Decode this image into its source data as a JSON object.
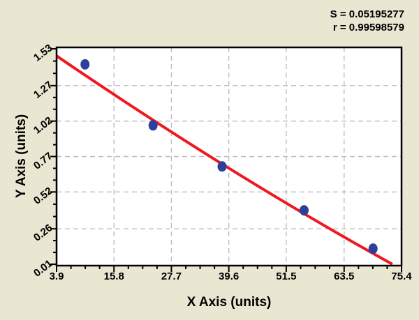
{
  "chart_data": {
    "type": "scatter",
    "title": "",
    "xlabel": "X Axis (units)",
    "ylabel": "Y Axis (units)",
    "xlim": [
      3.9,
      75.4
    ],
    "ylim": [
      0.01,
      1.53
    ],
    "x_ticks": [
      3.9,
      15.8,
      27.7,
      39.6,
      51.5,
      63.5,
      75.4
    ],
    "y_ticks": [
      1.53,
      1.27,
      1.02,
      0.77,
      0.52,
      0.26,
      0.01
    ],
    "grid": true,
    "legend": "none",
    "points": [
      {
        "x": 9.8,
        "y": 1.42
      },
      {
        "x": 23.9,
        "y": 0.99
      },
      {
        "x": 38.2,
        "y": 0.7
      },
      {
        "x": 55.2,
        "y": 0.39
      },
      {
        "x": 69.5,
        "y": 0.12
      }
    ],
    "fit_line": {
      "start": {
        "x": 3.9,
        "y": 1.48
      },
      "mid": {
        "x": 39.5,
        "y": 0.69
      },
      "end": {
        "x": 73.5,
        "y": 0.01
      }
    },
    "stats": {
      "s": "S = 0.05195277",
      "r": "r = 0.99598579"
    },
    "colors": {
      "background": "#E9E6D2",
      "plot_bg": "#FFFFFF",
      "grid": "#BDBDBD",
      "axis": "#000000",
      "point": "#2B3F9B",
      "line": "#F01820",
      "text": "#000000"
    }
  }
}
